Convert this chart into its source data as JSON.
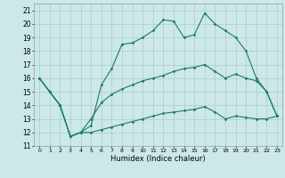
{
  "xlabel": "Humidex (Indice chaleur)",
  "xlim": [
    -0.5,
    23.5
  ],
  "ylim": [
    11,
    21.5
  ],
  "xticks": [
    0,
    1,
    2,
    3,
    4,
    5,
    6,
    7,
    8,
    9,
    10,
    11,
    12,
    13,
    14,
    15,
    16,
    17,
    18,
    19,
    20,
    21,
    22,
    23
  ],
  "yticks": [
    11,
    12,
    13,
    14,
    15,
    16,
    17,
    18,
    19,
    20,
    21
  ],
  "background_color": "#cce8e8",
  "line_color": "#1a7a6a",
  "grid_color": "#aacccc",
  "line1_x": [
    0,
    1,
    2,
    3,
    4,
    5,
    6,
    7,
    8,
    9,
    10,
    11,
    12,
    13,
    14,
    15,
    16,
    17,
    18,
    19,
    20,
    21,
    22,
    23
  ],
  "line1_y": [
    16,
    15,
    14,
    11.7,
    12.0,
    12.5,
    15.5,
    16.7,
    18.5,
    18.6,
    19.0,
    19.5,
    20.3,
    20.2,
    19.0,
    19.2,
    20.8,
    20.0,
    19.5,
    19.0,
    18.0,
    16.0,
    15.0,
    13.2
  ],
  "line2_x": [
    0,
    1,
    2,
    3,
    4,
    5,
    6,
    7,
    8,
    9,
    10,
    11,
    12,
    13,
    14,
    15,
    16,
    17,
    18,
    19,
    20,
    21,
    22,
    23
  ],
  "line2_y": [
    16,
    15,
    14,
    11.7,
    12.0,
    13.0,
    14.2,
    14.8,
    15.2,
    15.5,
    15.8,
    16.0,
    16.2,
    16.5,
    16.7,
    16.8,
    17.0,
    16.5,
    16.0,
    16.3,
    16.0,
    15.8,
    15.0,
    13.2
  ],
  "line3_x": [
    0,
    1,
    2,
    3,
    4,
    5,
    6,
    7,
    8,
    9,
    10,
    11,
    12,
    13,
    14,
    15,
    16,
    17,
    18,
    19,
    20,
    21,
    22,
    23
  ],
  "line3_y": [
    16,
    15,
    14,
    11.7,
    12.0,
    12.0,
    12.2,
    12.4,
    12.6,
    12.8,
    13.0,
    13.2,
    13.4,
    13.5,
    13.6,
    13.7,
    13.9,
    13.5,
    13.0,
    13.2,
    13.1,
    13.0,
    13.0,
    13.2
  ]
}
